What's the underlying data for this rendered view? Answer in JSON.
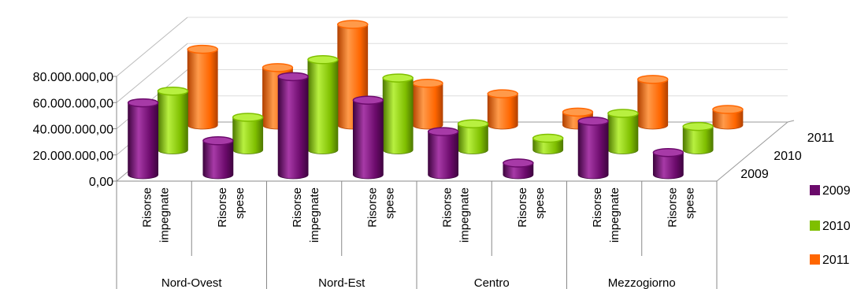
{
  "chart_data": {
    "type": "bar",
    "subtype": "3d-cylinder-clustered",
    "y_tick_labels": [
      "0,00",
      "20.000.000,00",
      "40.000.000,00",
      "60.000.000,00",
      "80.000.000,00"
    ],
    "ylim": [
      0,
      80000000
    ],
    "depth_labels": [
      "2009",
      "2010",
      "2011"
    ],
    "groups": [
      "Nord-Ovest",
      "Nord-Est",
      "Centro",
      "Mezzogiorno"
    ],
    "subcategories": [
      {
        "line1": "Risorse",
        "line2": "impegnate"
      },
      {
        "line1": "Risorse",
        "line2": "spese"
      }
    ],
    "series": [
      {
        "name": "2009",
        "values": [
          55000000,
          26000000,
          75000000,
          57000000,
          33000000,
          9000000,
          41000000,
          17000000
        ]
      },
      {
        "name": "2010",
        "values": [
          45000000,
          25000000,
          69000000,
          55000000,
          20000000,
          9000000,
          28000000,
          18000000
        ]
      },
      {
        "name": "2011",
        "values": [
          58000000,
          44000000,
          77000000,
          32000000,
          24000000,
          10000000,
          35000000,
          12000000
        ]
      }
    ],
    "legend": {
      "position": "right",
      "entries": [
        "2009",
        "2010",
        "2011"
      ]
    },
    "colors": {
      "2009": {
        "base": "#6b0a6b",
        "light": "#a73aa7",
        "dark": "#3f0440"
      },
      "2010": {
        "base": "#7fbf00",
        "light": "#b8f040",
        "dark": "#4f7a00"
      },
      "2011": {
        "base": "#ff6600",
        "light": "#ff9a4a",
        "dark": "#b34200"
      }
    },
    "grid": true
  }
}
